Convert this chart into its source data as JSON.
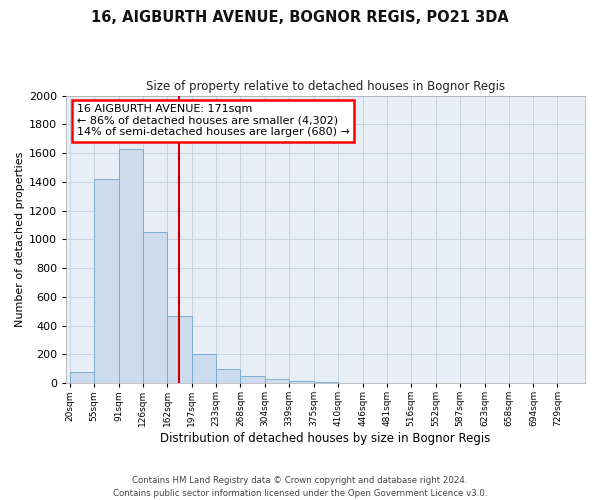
{
  "title": "16, AIGBURTH AVENUE, BOGNOR REGIS, PO21 3DA",
  "subtitle": "Size of property relative to detached houses in Bognor Regis",
  "xlabel": "Distribution of detached houses by size in Bognor Regis",
  "ylabel": "Number of detached properties",
  "footer_line1": "Contains HM Land Registry data © Crown copyright and database right 2024.",
  "footer_line2": "Contains public sector information licensed under the Open Government Licence v3.0.",
  "annotation_line1": "16 AIGBURTH AVENUE: 171sqm",
  "annotation_line2": "← 86% of detached houses are smaller (4,302)",
  "annotation_line3": "14% of semi-detached houses are larger (680) →",
  "property_size_idx": 4,
  "categories": [
    "20sqm",
    "55sqm",
    "91sqm",
    "126sqm",
    "162sqm",
    "197sqm",
    "233sqm",
    "268sqm",
    "304sqm",
    "339sqm",
    "375sqm",
    "410sqm",
    "446sqm",
    "481sqm",
    "516sqm",
    "552sqm",
    "587sqm",
    "623sqm",
    "658sqm",
    "694sqm",
    "729sqm"
  ],
  "bin_edges": [
    20,
    55,
    91,
    126,
    162,
    197,
    233,
    268,
    304,
    339,
    375,
    410,
    446,
    481,
    516,
    552,
    587,
    623,
    658,
    694,
    729,
    764
  ],
  "values": [
    75,
    1420,
    1630,
    1050,
    470,
    205,
    100,
    50,
    30,
    15,
    8,
    3,
    0,
    0,
    0,
    0,
    0,
    0,
    0,
    0,
    0
  ],
  "bar_color": "#ccdcec",
  "bar_edge_color": "#6fa8d0",
  "line_color": "#cc0000",
  "background_color": "#e8eef6",
  "grid_color": "#c8d4e0",
  "ylim": [
    0,
    2000
  ],
  "yticks": [
    0,
    200,
    400,
    600,
    800,
    1000,
    1200,
    1400,
    1600,
    1800,
    2000
  ]
}
